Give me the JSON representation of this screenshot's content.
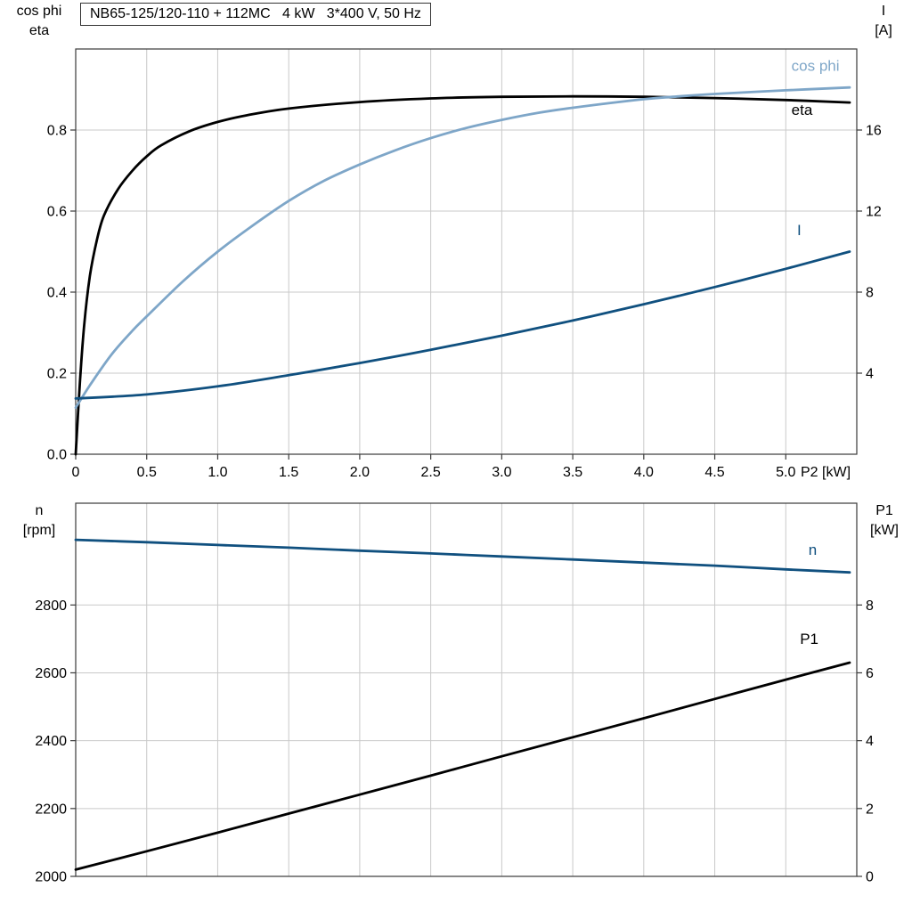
{
  "page": {
    "background": "#ffffff"
  },
  "colors": {
    "grid": "#c9c9c9",
    "frame": "#3a3a3a",
    "text": "#000000",
    "eta_black": "#000000",
    "cos_phi_blue": "#7ea6c8",
    "current_dark_blue": "#10507f"
  },
  "chart_data": [
    {
      "type": "line",
      "title": "NB65-125/120-110 + 112MC   4 kW   3*400 V, 50 Hz",
      "xlabel": "P2 [kW]",
      "xlim": [
        0,
        5.5
      ],
      "x_ticks": [
        0,
        0.5,
        1,
        1.5,
        2,
        2.5,
        3,
        3.5,
        4,
        4.5,
        5
      ],
      "x_tick_labels": [
        "0",
        "0.5",
        "1.0",
        "1.5",
        "2.0",
        "2.5",
        "3.0",
        "3.5",
        "4.0",
        "4.5",
        "5.0"
      ],
      "grid": true,
      "left_axis": {
        "title_lines": [
          "cos phi",
          "eta"
        ],
        "lim": [
          0,
          1.0
        ],
        "ticks": [
          0,
          0.2,
          0.4,
          0.6,
          0.8
        ],
        "tick_labels": [
          "0.0",
          "0.2",
          "0.4",
          "0.6",
          "0.8"
        ]
      },
      "right_axis": {
        "title_lines": [
          "I",
          "[A]"
        ],
        "lim": [
          0,
          20
        ],
        "ticks": [
          4,
          8,
          12,
          16
        ],
        "tick_labels": [
          "4",
          "8",
          "12",
          "16"
        ]
      },
      "series": [
        {
          "name": "eta",
          "axis": "left",
          "color": "#000000",
          "label": "eta",
          "label_pos": [
            5.04,
            0.85
          ],
          "x": [
            0,
            0.03,
            0.06,
            0.1,
            0.15,
            0.2,
            0.3,
            0.4,
            0.5,
            0.6,
            0.8,
            1.0,
            1.2,
            1.5,
            2.0,
            2.5,
            3.0,
            3.5,
            4.0,
            4.5,
            5.0,
            5.45
          ],
          "values": [
            0,
            0.18,
            0.32,
            0.44,
            0.53,
            0.59,
            0.655,
            0.7,
            0.735,
            0.762,
            0.797,
            0.82,
            0.836,
            0.853,
            0.869,
            0.878,
            0.882,
            0.883,
            0.882,
            0.879,
            0.874,
            0.868
          ]
        },
        {
          "name": "cos phi",
          "axis": "left",
          "color": "#7ea6c8",
          "label": "cos phi",
          "label_pos": [
            5.04,
            0.958
          ],
          "x": [
            0,
            0.1,
            0.25,
            0.4,
            0.5,
            0.75,
            1.0,
            1.25,
            1.5,
            1.75,
            2.0,
            2.25,
            2.5,
            2.75,
            3.0,
            3.25,
            3.5,
            4.0,
            4.25,
            4.5,
            5.0,
            5.45
          ],
          "values": [
            0.115,
            0.17,
            0.245,
            0.305,
            0.34,
            0.425,
            0.5,
            0.565,
            0.625,
            0.675,
            0.715,
            0.75,
            0.78,
            0.805,
            0.825,
            0.842,
            0.855,
            0.876,
            0.883,
            0.889,
            0.898,
            0.905
          ]
        },
        {
          "name": "I",
          "axis": "right",
          "color": "#10507f",
          "label": "I",
          "label_pos": [
            5.08,
            11.05
          ],
          "x": [
            0,
            0.5,
            1.0,
            1.5,
            2.0,
            2.5,
            3.0,
            3.5,
            4.0,
            4.5,
            5.0,
            5.45
          ],
          "values": [
            2.75,
            2.95,
            3.35,
            3.9,
            4.5,
            5.15,
            5.85,
            6.6,
            7.4,
            8.25,
            9.15,
            10.0
          ]
        }
      ]
    },
    {
      "type": "line",
      "title": "",
      "xlabel": "",
      "xlim": [
        0,
        5.5
      ],
      "x_ticks": [
        0.5,
        1,
        1.5,
        2,
        2.5,
        3,
        3.5,
        4,
        4.5,
        5
      ],
      "x_tick_labels": [],
      "grid": true,
      "left_axis": {
        "title_lines": [
          "n",
          "[rpm]"
        ],
        "lim": [
          2000,
          3100
        ],
        "ticks": [
          2000,
          2200,
          2400,
          2600,
          2800
        ],
        "tick_labels": [
          "2000",
          "2200",
          "2400",
          "2600",
          "2800"
        ]
      },
      "right_axis": {
        "title_lines": [
          "P1",
          "[kW]"
        ],
        "lim": [
          0,
          11
        ],
        "ticks": [
          0,
          2,
          4,
          6,
          8
        ],
        "tick_labels": [
          "0",
          "2",
          "4",
          "6",
          "8"
        ]
      },
      "series": [
        {
          "name": "n",
          "axis": "left",
          "color": "#10507f",
          "label": "n",
          "label_pos": [
            5.16,
            2962
          ],
          "x": [
            0,
            0.5,
            1,
            1.5,
            2,
            2.5,
            3,
            3.5,
            4,
            4.5,
            5,
            5.45
          ],
          "values": [
            2992,
            2985,
            2977,
            2969,
            2960,
            2952,
            2943,
            2934,
            2925,
            2916,
            2905,
            2896
          ]
        },
        {
          "name": "P1",
          "axis": "right",
          "color": "#000000",
          "label": "P1",
          "label_pos": [
            5.1,
            7.0
          ],
          "x": [
            0,
            0.5,
            1,
            1.5,
            2,
            2.5,
            3,
            3.5,
            4,
            4.5,
            5,
            5.45
          ],
          "values": [
            0.2,
            0.74,
            1.29,
            1.85,
            2.41,
            2.97,
            3.54,
            4.1,
            4.66,
            5.23,
            5.8,
            6.3
          ]
        }
      ]
    }
  ]
}
